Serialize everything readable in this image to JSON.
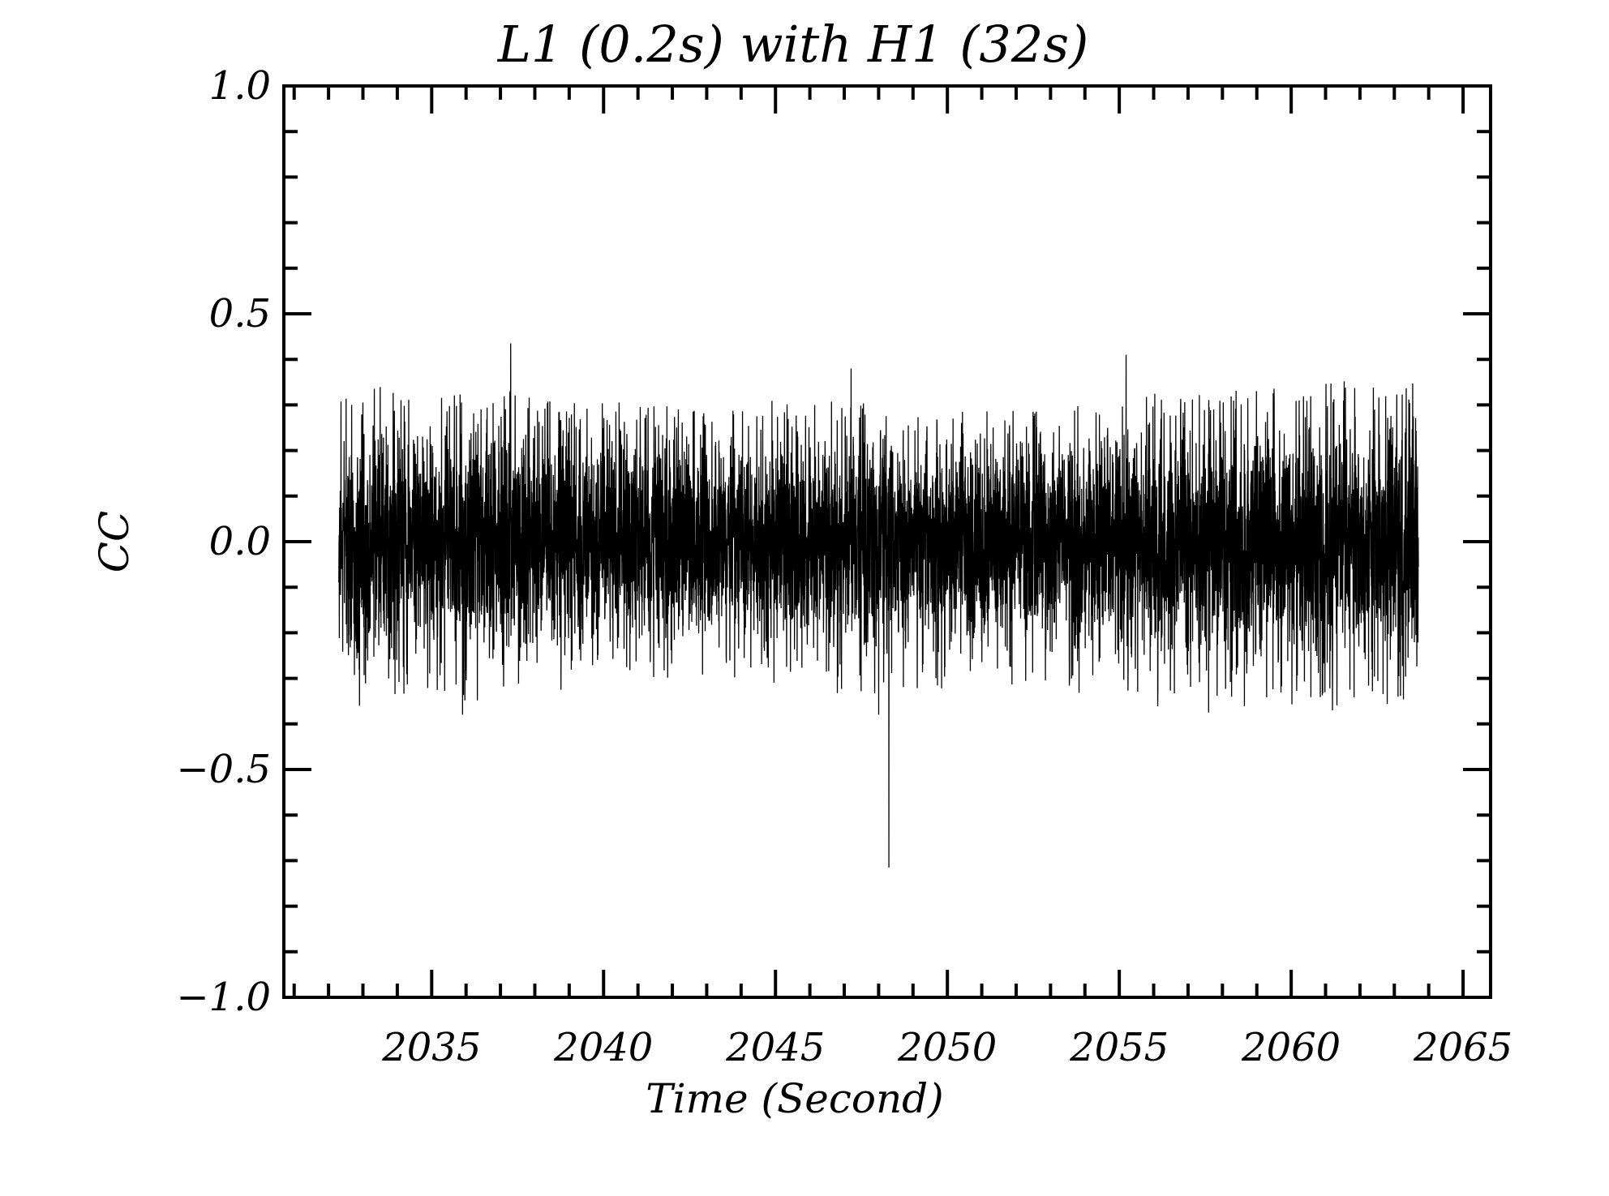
{
  "chart_data": {
    "type": "line",
    "title": "L1 (0.2s) with H1 (32s)",
    "xlabel": "Time (Second)",
    "ylabel": "CC",
    "xlim": [
      2030.7,
      2065.8
    ],
    "ylim": [
      -1.0,
      1.0
    ],
    "x_ticks": [
      2035,
      2040,
      2045,
      2050,
      2055,
      2060,
      2065
    ],
    "x_tick_labels": [
      "2035",
      "2040",
      "2045",
      "2050",
      "2055",
      "2060",
      "2065"
    ],
    "x_minor_step": 1,
    "y_ticks": [
      -1.0,
      -0.5,
      0.0,
      0.5,
      1.0
    ],
    "y_tick_labels": [
      "−1.0",
      "−0.5",
      "0.0",
      "0.5",
      "1.0"
    ],
    "y_minor_step": 0.1,
    "grid": false,
    "series": [
      {
        "color": "#000000",
        "x_start": 2032.3,
        "x_end": 2063.7,
        "typical_band": [
          -0.3,
          0.3
        ],
        "envelope_max": [
          [
            2032.3,
            0.26
          ],
          [
            2033,
            0.3
          ],
          [
            2034,
            0.28
          ],
          [
            2035,
            0.27
          ],
          [
            2036,
            0.3
          ],
          [
            2037,
            0.28
          ],
          [
            2038,
            0.27
          ],
          [
            2039,
            0.26
          ],
          [
            2040,
            0.26
          ],
          [
            2041,
            0.25
          ],
          [
            2042,
            0.25
          ],
          [
            2043,
            0.24
          ],
          [
            2044,
            0.25
          ],
          [
            2045,
            0.26
          ],
          [
            2046,
            0.25
          ],
          [
            2047,
            0.26
          ],
          [
            2048,
            0.25
          ],
          [
            2049,
            0.24
          ],
          [
            2050,
            0.24
          ],
          [
            2051,
            0.25
          ],
          [
            2052,
            0.25
          ],
          [
            2053,
            0.24
          ],
          [
            2054,
            0.26
          ],
          [
            2055,
            0.27
          ],
          [
            2056,
            0.28
          ],
          [
            2057,
            0.27
          ],
          [
            2058,
            0.28
          ],
          [
            2059,
            0.29
          ],
          [
            2060,
            0.3
          ],
          [
            2061,
            0.3
          ],
          [
            2062,
            0.3
          ],
          [
            2063,
            0.29
          ],
          [
            2063.7,
            0.3
          ]
        ],
        "envelope_min": [
          [
            2032.3,
            -0.27
          ],
          [
            2033,
            -0.31
          ],
          [
            2034,
            -0.29
          ],
          [
            2035,
            -0.28
          ],
          [
            2036,
            -0.3
          ],
          [
            2037,
            -0.29
          ],
          [
            2038,
            -0.28
          ],
          [
            2039,
            -0.27
          ],
          [
            2040,
            -0.27
          ],
          [
            2041,
            -0.26
          ],
          [
            2042,
            -0.26
          ],
          [
            2043,
            -0.26
          ],
          [
            2044,
            -0.26
          ],
          [
            2045,
            -0.27
          ],
          [
            2046,
            -0.27
          ],
          [
            2047,
            -0.28
          ],
          [
            2048,
            -0.28
          ],
          [
            2049,
            -0.27
          ],
          [
            2050,
            -0.27
          ],
          [
            2051,
            -0.27
          ],
          [
            2052,
            -0.27
          ],
          [
            2053,
            -0.27
          ],
          [
            2054,
            -0.28
          ],
          [
            2055,
            -0.3
          ],
          [
            2056,
            -0.31
          ],
          [
            2057,
            -0.3
          ],
          [
            2058,
            -0.31
          ],
          [
            2059,
            -0.3
          ],
          [
            2060,
            -0.31
          ],
          [
            2061,
            -0.32
          ],
          [
            2062,
            -0.31
          ],
          [
            2063,
            -0.3
          ],
          [
            2063.7,
            -0.29
          ]
        ],
        "peaks": [
          {
            "x": 2037.3,
            "y": 0.435
          },
          {
            "x": 2055.2,
            "y": 0.41
          },
          {
            "x": 2035.9,
            "y": 0.375
          },
          {
            "x": 2047.2,
            "y": 0.38
          },
          {
            "x": 2048.3,
            "y": -0.715
          },
          {
            "x": 2035.9,
            "y": -0.38
          },
          {
            "x": 2048.0,
            "y": -0.38
          },
          {
            "x": 2057.6,
            "y": -0.375
          },
          {
            "x": 2061.2,
            "y": -0.37
          },
          {
            "x": 2032.9,
            "y": -0.36
          }
        ]
      }
    ]
  }
}
